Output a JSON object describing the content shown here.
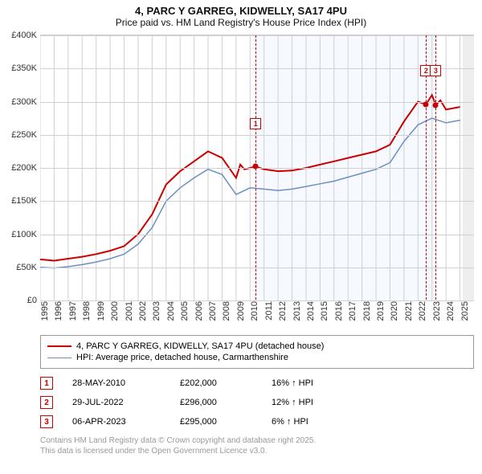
{
  "title_line1": "4, PARC Y GARREG, KIDWELLY, SA17 4PU",
  "title_line2": "Price paid vs. HM Land Registry's House Price Index (HPI)",
  "chart": {
    "type": "line",
    "background_color": "#ffffff",
    "grid_color": "#d0d0d0",
    "ylabel_fontsize": 11,
    "xlabel_fontsize": 11,
    "x_start": 1995,
    "x_end": 2026,
    "y_min": 0,
    "y_max": 400000,
    "ytick_step": 50000,
    "yticks": [
      "£0",
      "£50K",
      "£100K",
      "£150K",
      "£200K",
      "£250K",
      "£300K",
      "£350K",
      "£400K"
    ],
    "xticks": [
      "1995",
      "1996",
      "1997",
      "1998",
      "1999",
      "2000",
      "2001",
      "2002",
      "2003",
      "2004",
      "2005",
      "2006",
      "2007",
      "2008",
      "2009",
      "2010",
      "2011",
      "2012",
      "2013",
      "2014",
      "2015",
      "2016",
      "2017",
      "2018",
      "2019",
      "2020",
      "2021",
      "2022",
      "2023",
      "2024",
      "2025"
    ],
    "focus_band": {
      "start": 2010.4,
      "end": 2023.3,
      "fill": "#f6f9ff"
    },
    "future_band": {
      "start": 2025.2,
      "fill": "#eeeeee"
    },
    "series": [
      {
        "name": "price_paid",
        "label": "4, PARC Y GARREG, KIDWELLY, SA17 4PU (detached house)",
        "color": "#cc0000",
        "line_width": 2,
        "data": [
          [
            1995,
            62000
          ],
          [
            1996,
            60000
          ],
          [
            1997,
            63000
          ],
          [
            1998,
            66000
          ],
          [
            1999,
            70000
          ],
          [
            2000,
            75000
          ],
          [
            2001,
            82000
          ],
          [
            2002,
            100000
          ],
          [
            2003,
            130000
          ],
          [
            2004,
            175000
          ],
          [
            2005,
            195000
          ],
          [
            2006,
            210000
          ],
          [
            2007,
            225000
          ],
          [
            2008,
            215000
          ],
          [
            2009,
            185000
          ],
          [
            2009.3,
            205000
          ],
          [
            2009.6,
            198000
          ],
          [
            2010,
            200000
          ],
          [
            2010.4,
            202000
          ],
          [
            2011,
            198000
          ],
          [
            2012,
            195000
          ],
          [
            2013,
            196000
          ],
          [
            2014,
            200000
          ],
          [
            2015,
            205000
          ],
          [
            2016,
            210000
          ],
          [
            2017,
            215000
          ],
          [
            2018,
            220000
          ],
          [
            2019,
            225000
          ],
          [
            2020,
            235000
          ],
          [
            2021,
            270000
          ],
          [
            2022,
            300000
          ],
          [
            2022.58,
            296000
          ],
          [
            2023,
            310000
          ],
          [
            2023.27,
            295000
          ],
          [
            2023.6,
            302000
          ],
          [
            2024,
            288000
          ],
          [
            2025,
            292000
          ]
        ]
      },
      {
        "name": "hpi",
        "label": "HPI: Average price, detached house, Carmarthenshire",
        "color": "#6b8fc5",
        "line_width": 1.5,
        "data": [
          [
            1995,
            50000
          ],
          [
            1996,
            49000
          ],
          [
            1997,
            51000
          ],
          [
            1998,
            54000
          ],
          [
            1999,
            58000
          ],
          [
            2000,
            63000
          ],
          [
            2001,
            70000
          ],
          [
            2002,
            85000
          ],
          [
            2003,
            110000
          ],
          [
            2004,
            150000
          ],
          [
            2005,
            170000
          ],
          [
            2006,
            185000
          ],
          [
            2007,
            198000
          ],
          [
            2008,
            190000
          ],
          [
            2009,
            160000
          ],
          [
            2010,
            170000
          ],
          [
            2011,
            168000
          ],
          [
            2012,
            166000
          ],
          [
            2013,
            168000
          ],
          [
            2014,
            172000
          ],
          [
            2015,
            176000
          ],
          [
            2016,
            180000
          ],
          [
            2017,
            186000
          ],
          [
            2018,
            192000
          ],
          [
            2019,
            198000
          ],
          [
            2020,
            208000
          ],
          [
            2021,
            240000
          ],
          [
            2022,
            265000
          ],
          [
            2023,
            275000
          ],
          [
            2024,
            268000
          ],
          [
            2025,
            272000
          ]
        ]
      }
    ],
    "markers": [
      {
        "id": "1",
        "x": 2010.4,
        "y": 202000,
        "color": "#cc0000"
      },
      {
        "id": "2",
        "x": 2022.58,
        "y": 296000,
        "color": "#cc0000"
      },
      {
        "id": "3",
        "x": 2023.27,
        "y": 295000,
        "color": "#cc0000"
      }
    ]
  },
  "legend_title": "",
  "table": {
    "rows": [
      {
        "id": "1",
        "date": "28-MAY-2010",
        "price": "£202,000",
        "delta": "16% ↑ HPI"
      },
      {
        "id": "2",
        "date": "29-JUL-2022",
        "price": "£296,000",
        "delta": "12% ↑ HPI"
      },
      {
        "id": "3",
        "date": "06-APR-2023",
        "price": "£295,000",
        "delta": "6% ↑ HPI"
      }
    ],
    "box_color": "#cc0000"
  },
  "attribution_line1": "Contains HM Land Registry data © Crown copyright and database right 2025.",
  "attribution_line2": "This data is licensed under the Open Government Licence v3.0."
}
